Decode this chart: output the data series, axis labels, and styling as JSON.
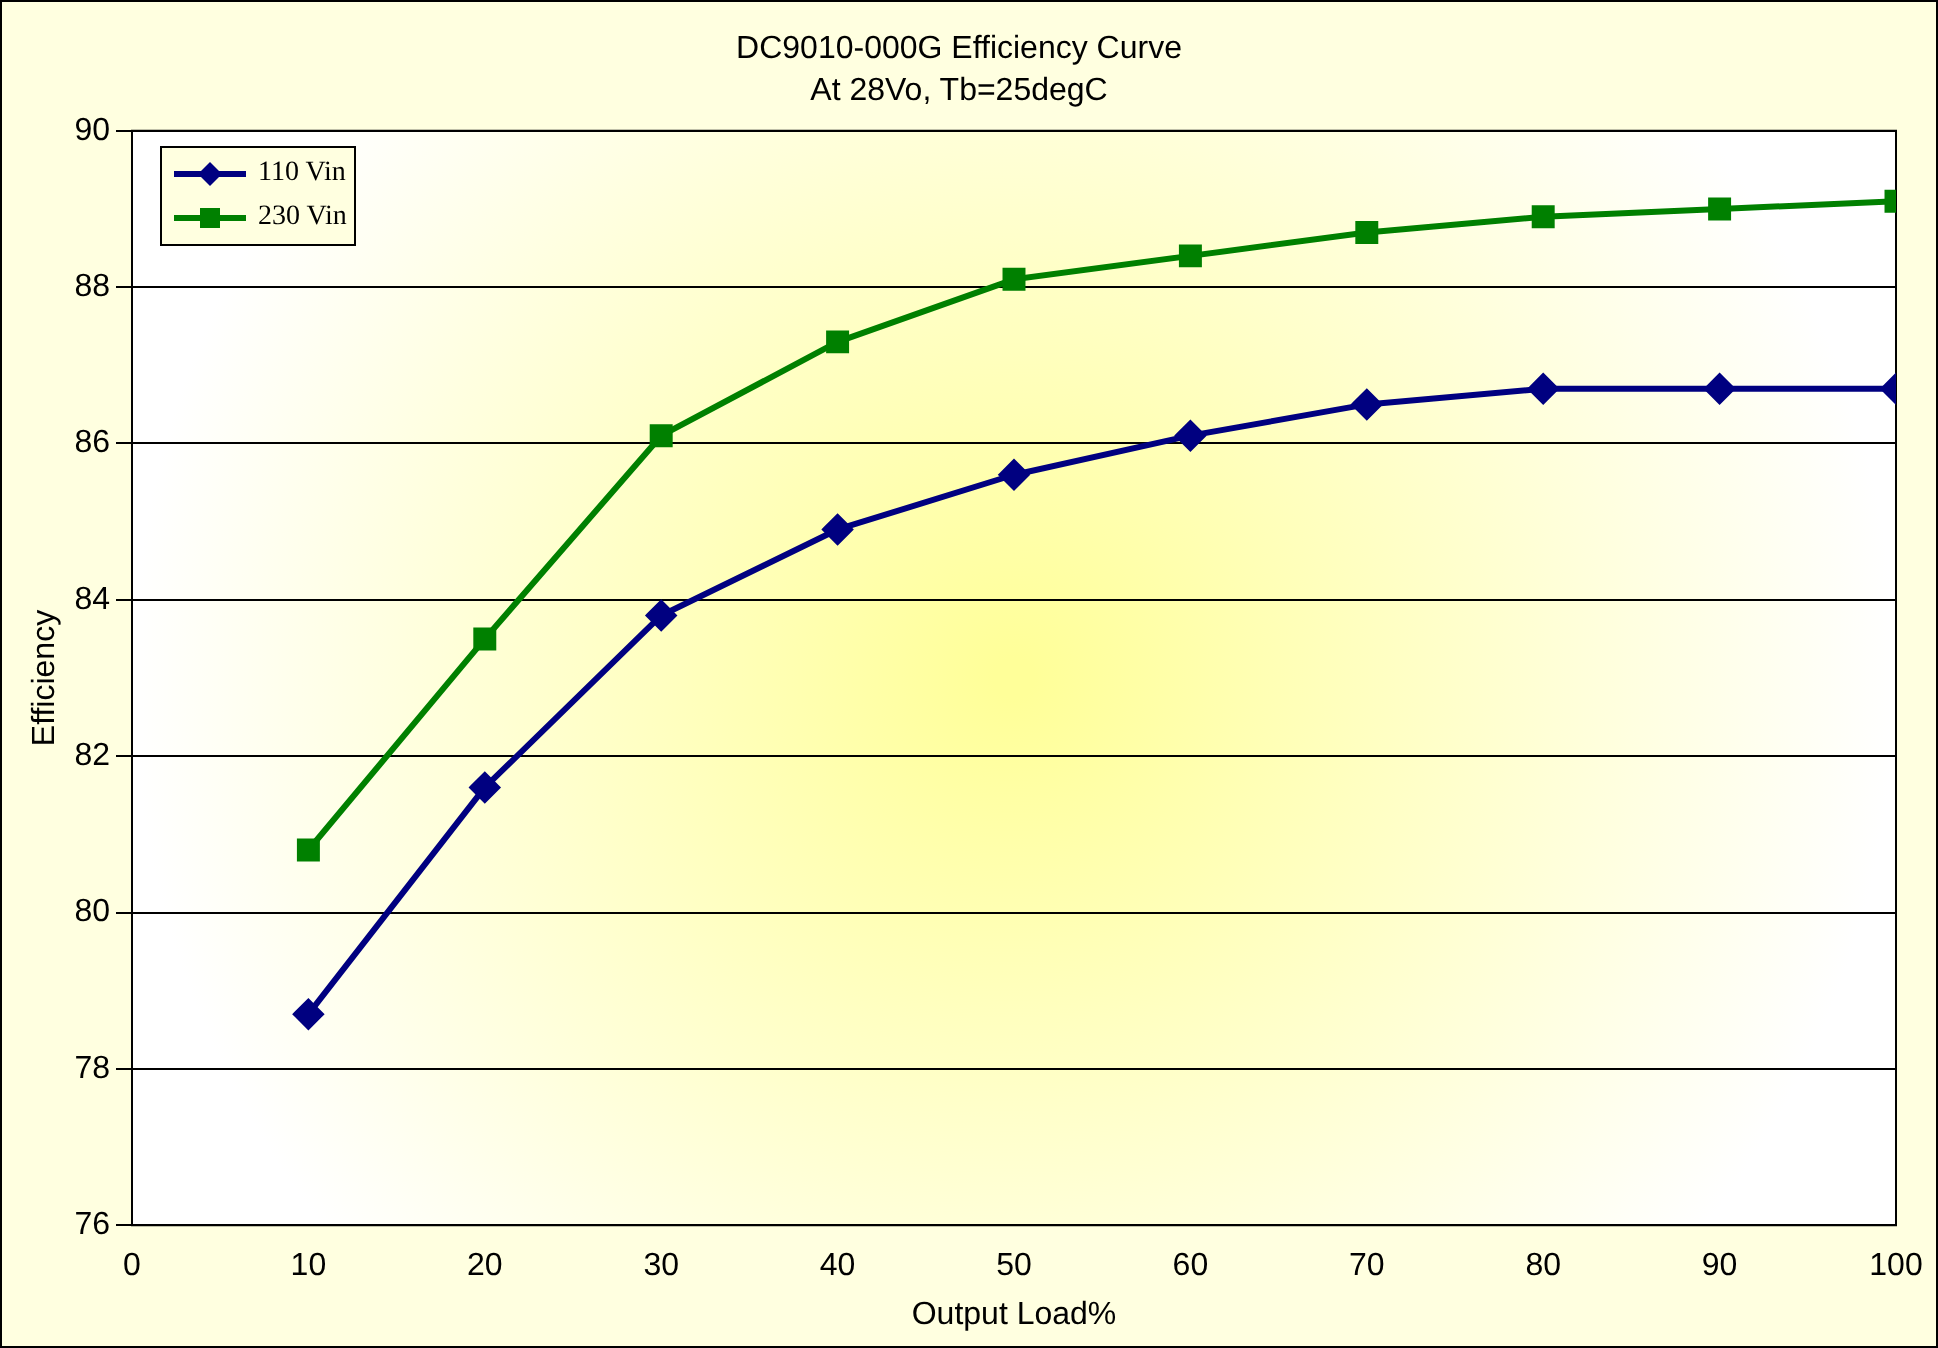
{
  "chart_data": {
    "type": "line",
    "title": "DC9010-000G Efficiency Curve",
    "subtitle": "At 28Vo, Tb=25degC",
    "xlabel": "Output Load%",
    "ylabel": "Efficiency",
    "x": [
      10,
      20,
      30,
      40,
      50,
      60,
      70,
      80,
      90,
      100
    ],
    "series": [
      {
        "name": "110 Vin",
        "color": "#000080",
        "marker": "diamond",
        "values": [
          78.7,
          81.6,
          83.8,
          84.9,
          85.6,
          86.1,
          86.5,
          86.7,
          86.7,
          86.7
        ]
      },
      {
        "name": "230 Vin",
        "color": "#008000",
        "marker": "square",
        "values": [
          80.8,
          83.5,
          86.1,
          87.3,
          88.1,
          88.4,
          88.7,
          88.9,
          89.0,
          89.1
        ]
      }
    ],
    "xlim": [
      0,
      100
    ],
    "xticks": [
      0,
      10,
      20,
      30,
      40,
      50,
      60,
      70,
      80,
      90,
      100
    ],
    "ylim": [
      76,
      90
    ],
    "yticks": [
      76,
      78,
      80,
      82,
      84,
      86,
      88,
      90
    ],
    "grid": "y",
    "legend": "top left",
    "line_style": "solid"
  }
}
